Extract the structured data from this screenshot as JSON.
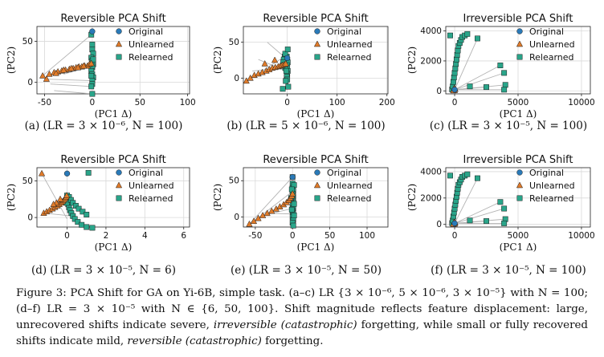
{
  "chart_data": [
    {
      "id": "a",
      "type": "scatter",
      "title": "Reversible PCA Shift",
      "xlabel": "(PC1 Δ)",
      "ylabel": "(PC2)",
      "xlim": [
        -58,
        102
      ],
      "ylim": [
        -14,
        68
      ],
      "xticks": [
        -50,
        0,
        50,
        100
      ],
      "yticks": [
        0,
        50
      ],
      "grid": true,
      "legend": [
        "Original",
        "Unlearned",
        "Relearned"
      ],
      "legend_position": "upper-right",
      "original": [
        [
          0,
          62
        ]
      ],
      "unlearned": [
        [
          -52,
          8
        ],
        [
          -45,
          10
        ],
        [
          -40,
          12
        ],
        [
          -36,
          13
        ],
        [
          -32,
          14
        ],
        [
          -28,
          15
        ],
        [
          -24,
          16
        ],
        [
          -20,
          17
        ],
        [
          -17,
          18
        ],
        [
          -14,
          19
        ],
        [
          -11,
          19
        ],
        [
          -8,
          20
        ],
        [
          -5,
          20
        ],
        [
          -3,
          22
        ],
        [
          -1,
          23
        ],
        [
          -38,
          11
        ],
        [
          -30,
          15
        ],
        [
          -22,
          17
        ],
        [
          -15,
          18
        ],
        [
          -9,
          20
        ],
        [
          -48,
          4
        ]
      ],
      "relearned": [
        [
          -1,
          58
        ],
        [
          0,
          46
        ],
        [
          0,
          40
        ],
        [
          1,
          35
        ],
        [
          -1,
          30
        ],
        [
          0,
          26
        ],
        [
          1,
          22
        ],
        [
          0,
          18
        ],
        [
          -1,
          14
        ],
        [
          0,
          10
        ],
        [
          1,
          6
        ],
        [
          0,
          2
        ],
        [
          0,
          -2
        ],
        [
          -1,
          -5
        ],
        [
          0,
          -14
        ],
        [
          1,
          28
        ],
        [
          0,
          20
        ],
        [
          -1,
          8
        ]
      ],
      "links": [
        [
          -52,
          8,
          -1,
          58
        ],
        [
          -50,
          4,
          0,
          2
        ],
        [
          -44,
          -2,
          -1,
          -5
        ],
        [
          -40,
          -10,
          0,
          -14
        ],
        [
          -30,
          10,
          0,
          20
        ]
      ],
      "caption": "(a) (LR = 3 × 10⁻⁶, N = 100)"
    },
    {
      "id": "b",
      "type": "scatter",
      "title": "Reversible PCA Shift",
      "xlabel": "(PC1 Δ)",
      "ylabel": "(PC2)",
      "xlim": [
        -88,
        202
      ],
      "ylim": [
        -22,
        72
      ],
      "xticks": [
        0,
        100,
        200
      ],
      "yticks": [
        0,
        50
      ],
      "grid": true,
      "legend": [
        "Original",
        "Unlearned",
        "Relearned"
      ],
      "legend_position": "upper-right",
      "original": [
        [
          0,
          28
        ]
      ],
      "unlearned": [
        [
          -82,
          -4
        ],
        [
          -74,
          0
        ],
        [
          -66,
          4
        ],
        [
          -58,
          6
        ],
        [
          -50,
          8
        ],
        [
          -42,
          10
        ],
        [
          -36,
          12
        ],
        [
          -30,
          14
        ],
        [
          -24,
          15
        ],
        [
          -18,
          16
        ],
        [
          -14,
          17
        ],
        [
          -10,
          18
        ],
        [
          -6,
          19
        ],
        [
          -3,
          20
        ],
        [
          -45,
          20
        ],
        [
          -25,
          25
        ]
      ],
      "relearned": [
        [
          -1,
          30
        ],
        [
          0,
          26
        ],
        [
          1,
          22
        ],
        [
          -1,
          18
        ],
        [
          0,
          14
        ],
        [
          1,
          10
        ],
        [
          0,
          6
        ],
        [
          -1,
          2
        ],
        [
          0,
          -2
        ],
        [
          -3,
          -4
        ],
        [
          -5,
          30
        ],
        [
          -7,
          26
        ],
        [
          -8,
          22
        ],
        [
          -6,
          18
        ],
        [
          -4,
          14
        ],
        [
          -2,
          10
        ],
        [
          -9,
          -15
        ],
        [
          2,
          -12
        ],
        [
          -4,
          34
        ],
        [
          1,
          40
        ]
      ],
      "links": [
        [
          -82,
          -4,
          -5,
          30
        ],
        [
          -70,
          10,
          -4,
          14
        ],
        [
          -58,
          26,
          -2,
          10
        ],
        [
          -40,
          50,
          0,
          26
        ]
      ],
      "caption": "(b) (LR = 5 × 10⁻⁶, N = 100)"
    },
    {
      "id": "c",
      "type": "scatter",
      "title": "Irreversible PCA Shift",
      "xlabel": "(PC1 Δ)",
      "ylabel": "(PC2)",
      "xlim": [
        -700,
        10700
      ],
      "ylim": [
        -200,
        4300
      ],
      "xticks": [
        0,
        5000,
        10000
      ],
      "yticks": [
        0,
        2000,
        4000
      ],
      "grid": true,
      "legend": [
        "Original",
        "Unlearned",
        "Relearned"
      ],
      "legend_position": "upper-right",
      "original": [
        [
          0,
          80
        ]
      ],
      "unlearned": [
        [
          -80,
          60
        ],
        [
          -60,
          100
        ],
        [
          -40,
          160
        ],
        [
          0,
          40
        ],
        [
          40,
          120
        ],
        [
          -100,
          20
        ]
      ],
      "relearned": [
        [
          -200,
          100
        ],
        [
          -150,
          300
        ],
        [
          -100,
          600
        ],
        [
          -50,
          900
        ],
        [
          0,
          1200
        ],
        [
          50,
          1500
        ],
        [
          100,
          1800
        ],
        [
          150,
          2100
        ],
        [
          200,
          2400
        ],
        [
          250,
          2700
        ],
        [
          300,
          3000
        ],
        [
          400,
          3200
        ],
        [
          500,
          3400
        ],
        [
          600,
          3600
        ],
        [
          800,
          3700
        ],
        [
          1000,
          3800
        ],
        [
          1800,
          3500
        ],
        [
          3600,
          1700
        ],
        [
          3900,
          1200
        ],
        [
          4000,
          400
        ],
        [
          3900,
          80
        ],
        [
          -350,
          3700
        ],
        [
          1200,
          300
        ],
        [
          2500,
          250
        ]
      ],
      "links": [
        [
          0,
          80,
          1800,
          3500
        ],
        [
          0,
          80,
          3600,
          1700
        ],
        [
          0,
          80,
          3900,
          1200
        ],
        [
          0,
          80,
          4000,
          400
        ],
        [
          0,
          80,
          3900,
          80
        ],
        [
          0,
          80,
          2500,
          250
        ]
      ],
      "caption": "(c) (LR = 3 × 10⁻⁵, N = 100)"
    },
    {
      "id": "d",
      "type": "scatter",
      "title": "Reversible PCA Shift",
      "xlabel": "(PC1 Δ)",
      "ylabel": "(PC2)",
      "xlim": [
        -1.55,
        6.3
      ],
      "ylim": [
        -13,
        68
      ],
      "xticks": [
        0,
        2,
        4,
        6
      ],
      "yticks": [
        0,
        50
      ],
      "grid": true,
      "legend": [
        "Original",
        "Unlearned",
        "Relearned"
      ],
      "legend_position": "upper-right",
      "original": [
        [
          0,
          60
        ]
      ],
      "unlearned": [
        [
          -1.3,
          60
        ],
        [
          -1.2,
          6
        ],
        [
          -1.05,
          8
        ],
        [
          -0.9,
          10
        ],
        [
          -0.75,
          12
        ],
        [
          -0.62,
          14
        ],
        [
          -0.5,
          16
        ],
        [
          -0.4,
          18
        ],
        [
          -0.3,
          20
        ],
        [
          -0.22,
          22
        ],
        [
          -0.15,
          24
        ],
        [
          -0.1,
          26
        ],
        [
          -0.05,
          28
        ],
        [
          -0.02,
          30
        ],
        [
          -0.35,
          25
        ],
        [
          -0.55,
          20
        ],
        [
          -0.7,
          18
        ]
      ],
      "relearned": [
        [
          1.1,
          61
        ],
        [
          0,
          30
        ],
        [
          0.02,
          26
        ],
        [
          0.04,
          22
        ],
        [
          0.06,
          18
        ],
        [
          0.1,
          14
        ],
        [
          0.15,
          10
        ],
        [
          0.22,
          6
        ],
        [
          0.3,
          2
        ],
        [
          0.4,
          -2
        ],
        [
          0.55,
          -6
        ],
        [
          0.75,
          -10
        ],
        [
          1.0,
          -13
        ],
        [
          1.3,
          -14
        ],
        [
          -0.05,
          24
        ],
        [
          -0.02,
          20
        ],
        [
          0.1,
          28
        ],
        [
          0.2,
          24
        ],
        [
          0.3,
          20
        ],
        [
          0.45,
          16
        ],
        [
          0.6,
          12
        ],
        [
          0.8,
          8
        ],
        [
          1.0,
          4
        ]
      ],
      "links": [
        [
          -1.3,
          60,
          0,
          -2
        ],
        [
          -1.2,
          6,
          0.3,
          2
        ]
      ],
      "caption": "(d) (LR = 3 × 10⁻⁵, N = 6)"
    },
    {
      "id": "e",
      "type": "scatter",
      "title": "Reversible PCA Shift",
      "xlabel": "(PC1 Δ)",
      "ylabel": "(PC2)",
      "xlim": [
        -66,
        128
      ],
      "ylim": [
        -14,
        68
      ],
      "xticks": [
        -50,
        0,
        50,
        100
      ],
      "yticks": [
        0,
        50
      ],
      "grid": true,
      "legend": [
        "Original",
        "Unlearned",
        "Relearned"
      ],
      "legend_position": "upper-right",
      "original": [
        [
          0,
          55
        ]
      ],
      "unlearned": [
        [
          -58,
          -10
        ],
        [
          -52,
          -6
        ],
        [
          -46,
          -2
        ],
        [
          -40,
          2
        ],
        [
          -34,
          5
        ],
        [
          -28,
          8
        ],
        [
          -22,
          11
        ],
        [
          -17,
          14
        ],
        [
          -12,
          17
        ],
        [
          -8,
          20
        ],
        [
          -5,
          23
        ],
        [
          -3,
          26
        ],
        [
          -1,
          29
        ],
        [
          0,
          32
        ]
      ],
      "relearned": [
        [
          0,
          55
        ],
        [
          0,
          46
        ],
        [
          0,
          40
        ],
        [
          1,
          36
        ],
        [
          0,
          32
        ],
        [
          1,
          28
        ],
        [
          0,
          24
        ],
        [
          1,
          20
        ],
        [
          0,
          16
        ],
        [
          1,
          12
        ],
        [
          0,
          8
        ],
        [
          1,
          4
        ],
        [
          0,
          0
        ],
        [
          1,
          -4
        ],
        [
          0,
          -8
        ],
        [
          1,
          -12
        ],
        [
          2,
          44
        ],
        [
          -1,
          38
        ],
        [
          -2,
          26
        ],
        [
          2,
          18
        ],
        [
          -1,
          10
        ],
        [
          2,
          2
        ]
      ],
      "links": [
        [
          -58,
          -10,
          0,
          55
        ],
        [
          -52,
          -6,
          1,
          36
        ],
        [
          -46,
          -2,
          0,
          24
        ],
        [
          -40,
          2,
          1,
          12
        ],
        [
          -34,
          5,
          1,
          4
        ]
      ],
      "caption": "(e) (LR = 3 × 10⁻⁵, N = 50)"
    },
    {
      "id": "f",
      "type": "scatter",
      "title": "Irreversible PCA Shift",
      "xlabel": "(PC1 Δ)",
      "ylabel": "(PC2)",
      "xlim": [
        -700,
        10700
      ],
      "ylim": [
        -200,
        4300
      ],
      "xticks": [
        0,
        5000,
        10000
      ],
      "yticks": [
        0,
        2000,
        4000
      ],
      "grid": true,
      "legend": [
        "Original",
        "Unlearned",
        "Relearned"
      ],
      "legend_position": "upper-right",
      "original": [
        [
          0,
          80
        ]
      ],
      "unlearned": [
        [
          -80,
          60
        ],
        [
          -60,
          100
        ],
        [
          -40,
          160
        ],
        [
          0,
          40
        ],
        [
          40,
          120
        ],
        [
          -100,
          20
        ]
      ],
      "relearned": [
        [
          -200,
          100
        ],
        [
          -150,
          300
        ],
        [
          -100,
          600
        ],
        [
          -50,
          900
        ],
        [
          0,
          1200
        ],
        [
          50,
          1500
        ],
        [
          100,
          1800
        ],
        [
          150,
          2100
        ],
        [
          200,
          2400
        ],
        [
          250,
          2700
        ],
        [
          300,
          3000
        ],
        [
          400,
          3200
        ],
        [
          500,
          3400
        ],
        [
          600,
          3600
        ],
        [
          800,
          3700
        ],
        [
          1000,
          3800
        ],
        [
          1800,
          3500
        ],
        [
          3600,
          1700
        ],
        [
          3900,
          1200
        ],
        [
          4000,
          400
        ],
        [
          3900,
          80
        ],
        [
          -350,
          3700
        ],
        [
          1200,
          300
        ],
        [
          2500,
          250
        ]
      ],
      "links": [
        [
          0,
          80,
          1800,
          3500
        ],
        [
          0,
          80,
          3600,
          1700
        ],
        [
          0,
          80,
          3900,
          1200
        ],
        [
          0,
          80,
          4000,
          400
        ],
        [
          0,
          80,
          3900,
          80
        ],
        [
          0,
          80,
          2500,
          250
        ]
      ],
      "caption": "(f) (LR = 3 × 10⁻⁵, N = 100)"
    }
  ],
  "figure_caption": {
    "p1": "Figure 3: PCA Shift for GA on Yi-6B, simple task. (a–c) LR {3 × 10⁻⁶, 5 × 10⁻⁶, 3 × 10⁻⁵} with N = 100; (d–f) LR = 3 × 10⁻⁵ with N ∈ {6, 50, 100}. Shift magnitude reflects feature displacement: large, unrecovered shifts indicate severe, ",
    "em1": "irreversible (catastrophic)",
    "p2": " forgetting, while small or fully recovered shifts indicate mild, ",
    "em2": "reversible (catastrophic)",
    "p3": " forgetting."
  },
  "colors": {
    "original": "#2a7ab8",
    "unlearned": "#e07b2a",
    "relearned": "#2aa58a",
    "grid": "#d9d9d9",
    "link": "#b3b3b3"
  }
}
